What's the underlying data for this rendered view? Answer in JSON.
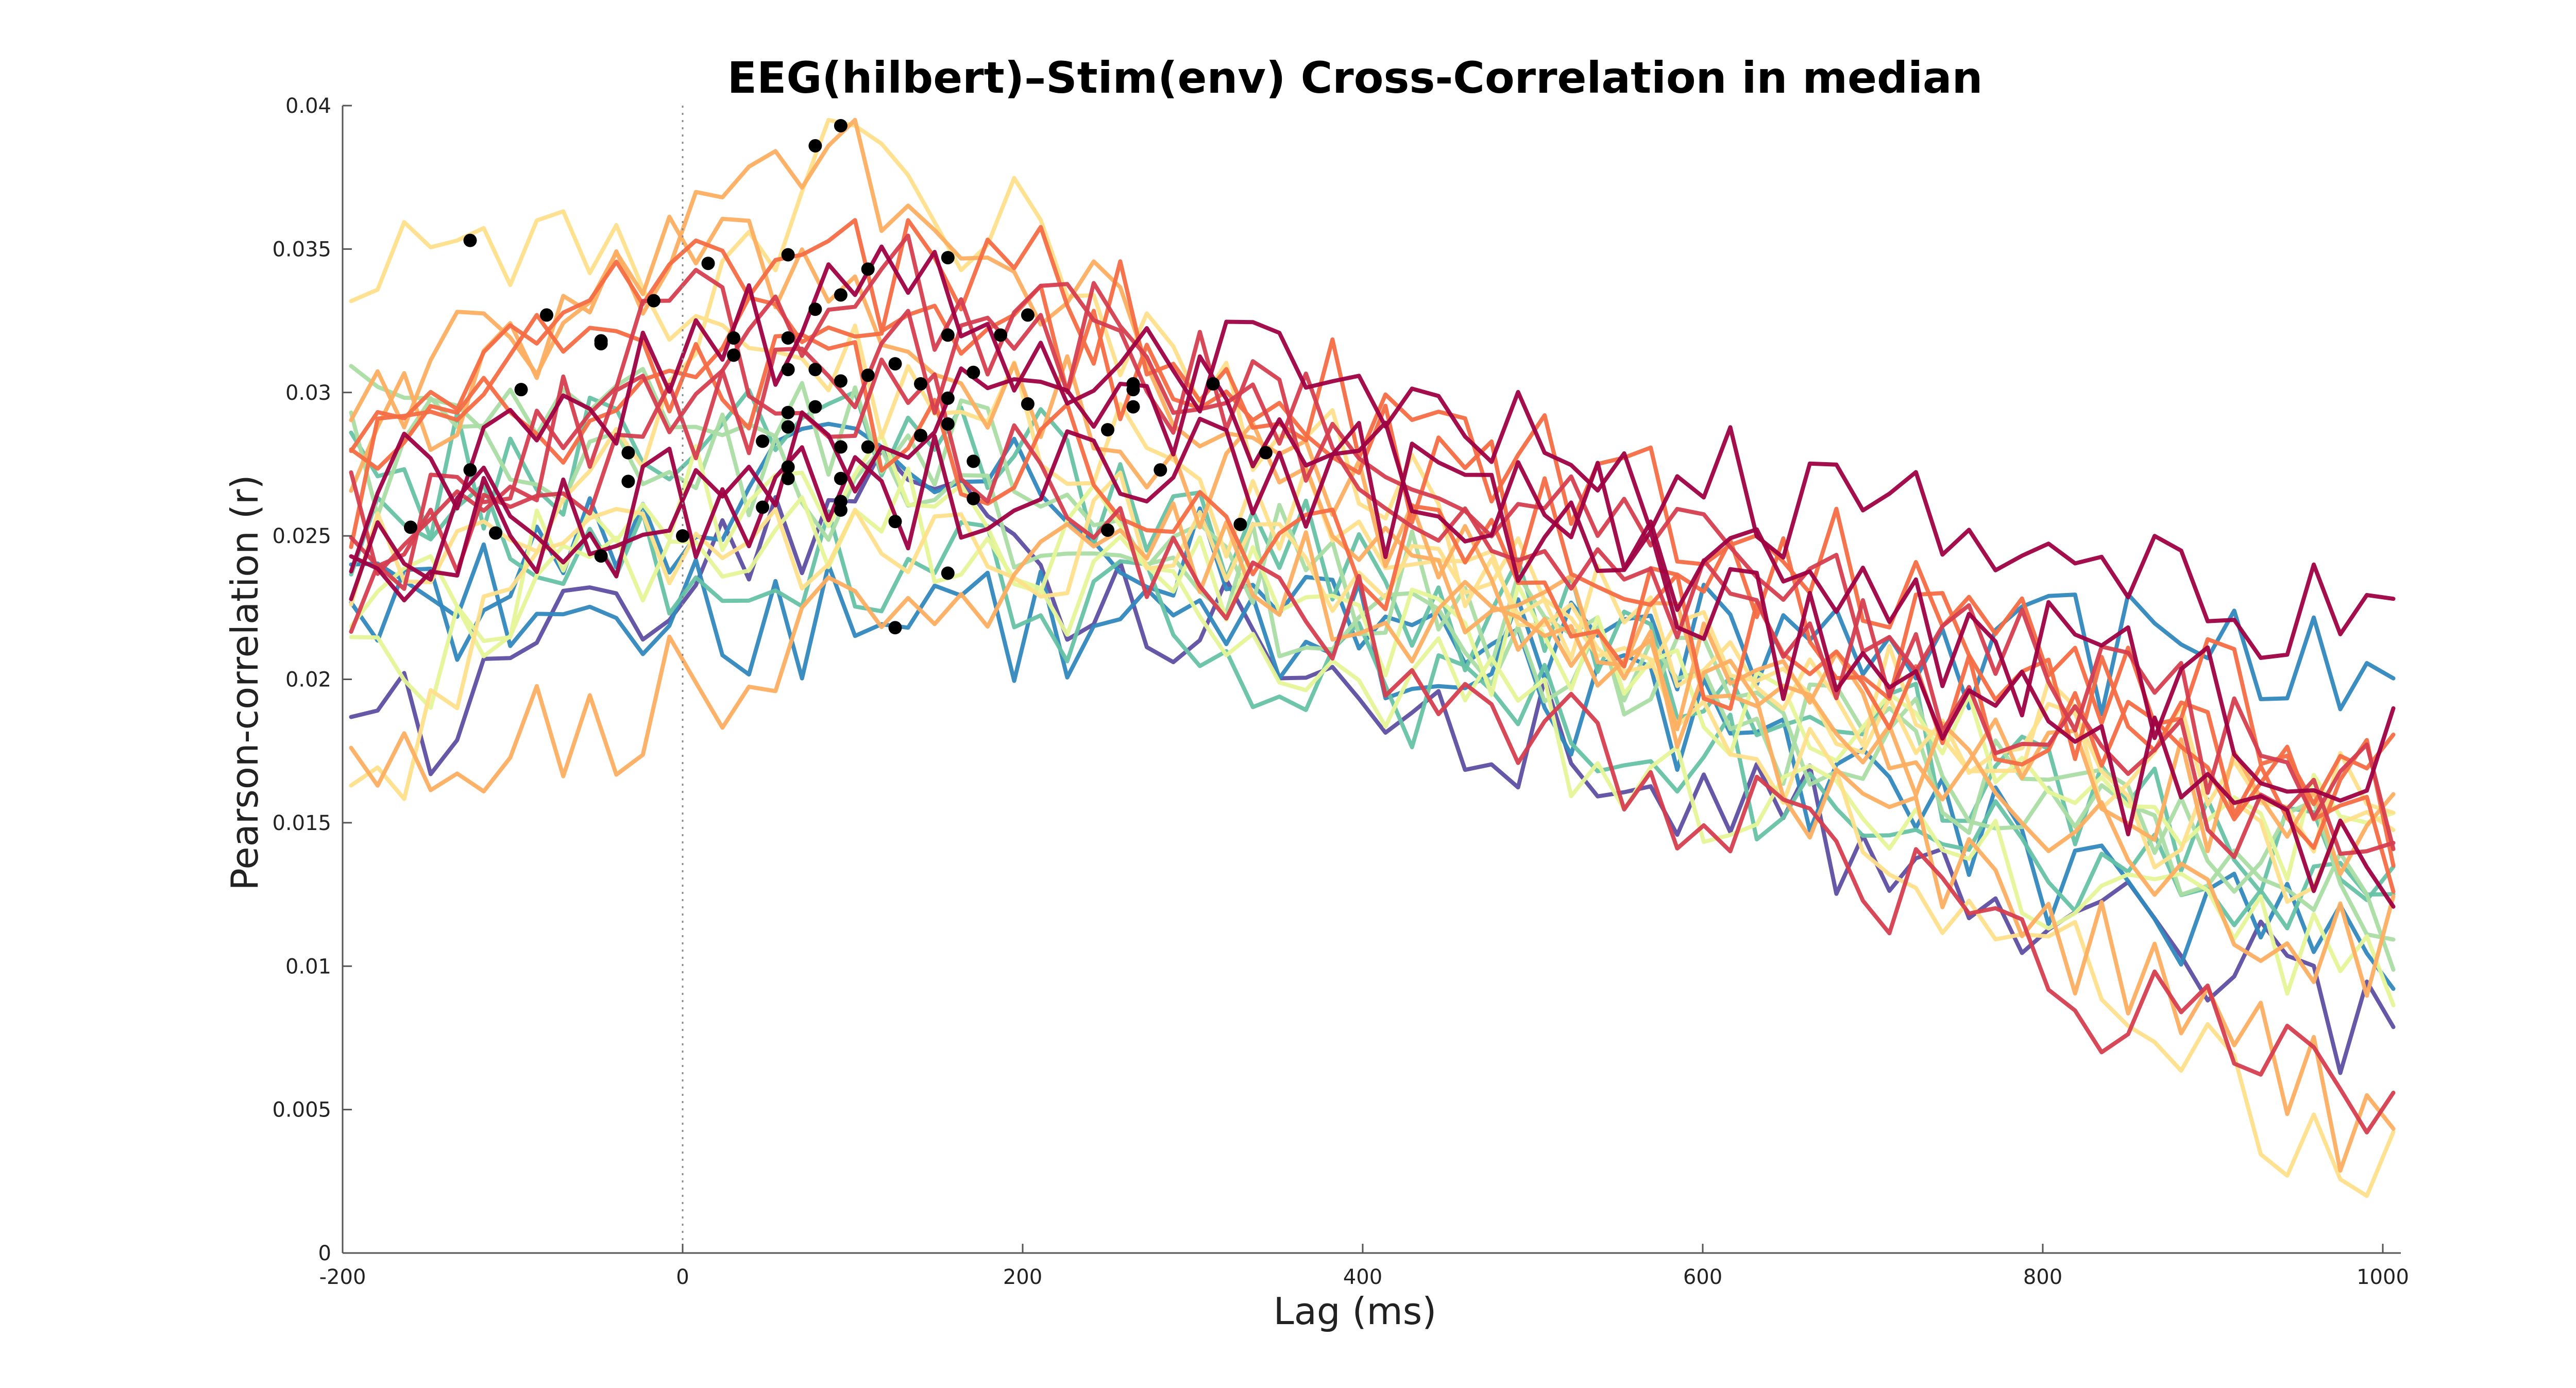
{
  "chart_data": {
    "type": "line",
    "title": "EEG(hilbert)–Stim(env) Cross-Correlation in median",
    "xlabel": "Lag (ms)",
    "ylabel": "Pearson-correlation (r)",
    "xlim": [
      -200,
      1000
    ],
    "ylim": [
      0,
      0.04
    ],
    "x_ticks": [
      -200,
      0,
      200,
      400,
      600,
      800,
      1000
    ],
    "x_tick_labels": [
      "-200",
      "0",
      "200",
      "400",
      "600",
      "800",
      "1000"
    ],
    "y_ticks": [
      0,
      0.005,
      0.01,
      0.015,
      0.02,
      0.025,
      0.03,
      0.035,
      0.04
    ],
    "y_tick_labels": [
      "0",
      "0.005",
      "0.01",
      "0.015",
      "0.02",
      "0.025",
      "0.03",
      "0.035",
      "0.04"
    ],
    "reference_line_x": 0,
    "x_start": -195,
    "x_step": 15.6,
    "n_points": 78,
    "grid": false,
    "legend": "none",
    "palette": [
      "#5e4fa2",
      "#3288bd",
      "#66c2a5",
      "#abdda4",
      "#e6f598",
      "#fee08b",
      "#fdae61",
      "#f46d43",
      "#d53e4f",
      "#9e0142"
    ],
    "series": [
      {
        "color": "#5e4fa2",
        "start": 0.0175,
        "peak_lag": 95,
        "peak": 0.0262,
        "end": 0.008
      },
      {
        "color": "#3288bd",
        "start": 0.021,
        "peak_lag": 110,
        "peak": 0.0281,
        "end": 0.0095
      },
      {
        "color": "#3288bd",
        "start": 0.023,
        "peak_lag": 125,
        "peak": 0.0218,
        "end": 0.0205
      },
      {
        "color": "#66c2a5",
        "start": 0.0255,
        "peak_lag": 155,
        "peak": 0.0237,
        "end": 0.011
      },
      {
        "color": "#66c2a5",
        "start": 0.0265,
        "peak_lag": 80,
        "peak": 0.0296,
        "end": 0.0125
      },
      {
        "color": "#abdda4",
        "start": 0.028,
        "peak_lag": 95,
        "peak": 0.027,
        "end": 0.013
      },
      {
        "color": "#abdda4",
        "start": 0.029,
        "peak_lag": 140,
        "peak": 0.0285,
        "end": 0.012
      },
      {
        "color": "#e6f598",
        "start": 0.02,
        "peak_lag": 95,
        "peak": 0.0259,
        "end": 0.009
      },
      {
        "color": "#e6f598",
        "start": 0.0215,
        "peak_lag": 65,
        "peak": 0.0272,
        "end": 0.014
      },
      {
        "color": "#fee08b",
        "start": 0.015,
        "peak_lag": 95,
        "peak": 0.0393,
        "end": 0.0025
      },
      {
        "color": "#fee08b",
        "start": 0.033,
        "peak_lag": -125,
        "peak": 0.0353,
        "end": 0.013
      },
      {
        "color": "#fee08b",
        "start": 0.024,
        "peak_lag": 330,
        "peak": 0.0254,
        "end": 0.015
      },
      {
        "color": "#fdae61",
        "start": 0.03,
        "peak_lag": 15,
        "peak": 0.0345,
        "end": 0.0105
      },
      {
        "color": "#fdae61",
        "start": 0.028,
        "peak_lag": 80,
        "peak": 0.0386,
        "end": 0.004
      },
      {
        "color": "#fdae61",
        "start": 0.0155,
        "peak_lag": 250,
        "peak": 0.0252,
        "end": 0.014
      },
      {
        "color": "#f46d43",
        "start": 0.029,
        "peak_lag": 65,
        "peak": 0.0348,
        "end": 0.0155
      },
      {
        "color": "#f46d43",
        "start": 0.027,
        "peak_lag": 155,
        "peak": 0.0347,
        "end": 0.017
      },
      {
        "color": "#f46d43",
        "start": 0.026,
        "peak_lag": -80,
        "peak": 0.0327,
        "end": 0.0145
      },
      {
        "color": "#d53e4f",
        "start": 0.025,
        "peak_lag": 110,
        "peak": 0.0343,
        "end": 0.016
      },
      {
        "color": "#d53e4f",
        "start": 0.024,
        "peak_lag": 205,
        "peak": 0.0327,
        "end": 0.0135
      },
      {
        "color": "#d53e4f",
        "start": 0.023,
        "peak_lag": -15,
        "peak": 0.0332,
        "end": 0.0045
      },
      {
        "color": "#9e0142",
        "start": 0.026,
        "peak_lag": 95,
        "peak": 0.0334,
        "end": 0.0215
      },
      {
        "color": "#9e0142",
        "start": 0.025,
        "peak_lag": 345,
        "peak": 0.0279,
        "end": 0.0135
      },
      {
        "color": "#9e0142",
        "start": 0.0245,
        "peak_lag": 265,
        "peak": 0.0303,
        "end": 0.017
      }
    ],
    "peak_markers": [
      {
        "x": -160,
        "y": 0.0253
      },
      {
        "x": -125,
        "y": 0.0353
      },
      {
        "x": -125,
        "y": 0.0273
      },
      {
        "x": -110,
        "y": 0.0251
      },
      {
        "x": -95,
        "y": 0.0301
      },
      {
        "x": -80,
        "y": 0.0327
      },
      {
        "x": -48,
        "y": 0.0318
      },
      {
        "x": -48,
        "y": 0.0317
      },
      {
        "x": -48,
        "y": 0.0243
      },
      {
        "x": -32,
        "y": 0.0279
      },
      {
        "x": -32,
        "y": 0.0269
      },
      {
        "x": -17,
        "y": 0.0332
      },
      {
        "x": 0,
        "y": 0.025
      },
      {
        "x": 15,
        "y": 0.0345
      },
      {
        "x": 30,
        "y": 0.0319
      },
      {
        "x": 30,
        "y": 0.0313
      },
      {
        "x": 47,
        "y": 0.0283
      },
      {
        "x": 47,
        "y": 0.026
      },
      {
        "x": 62,
        "y": 0.0348
      },
      {
        "x": 62,
        "y": 0.0319
      },
      {
        "x": 62,
        "y": 0.0308
      },
      {
        "x": 62,
        "y": 0.0293
      },
      {
        "x": 62,
        "y": 0.0288
      },
      {
        "x": 62,
        "y": 0.0274
      },
      {
        "x": 62,
        "y": 0.027
      },
      {
        "x": 78,
        "y": 0.0386
      },
      {
        "x": 78,
        "y": 0.0329
      },
      {
        "x": 78,
        "y": 0.0308
      },
      {
        "x": 78,
        "y": 0.0295
      },
      {
        "x": 93,
        "y": 0.0393
      },
      {
        "x": 93,
        "y": 0.0334
      },
      {
        "x": 93,
        "y": 0.0304
      },
      {
        "x": 93,
        "y": 0.0281
      },
      {
        "x": 93,
        "y": 0.027
      },
      {
        "x": 93,
        "y": 0.0262
      },
      {
        "x": 93,
        "y": 0.0259
      },
      {
        "x": 109,
        "y": 0.0343
      },
      {
        "x": 109,
        "y": 0.0306
      },
      {
        "x": 109,
        "y": 0.0281
      },
      {
        "x": 125,
        "y": 0.031
      },
      {
        "x": 125,
        "y": 0.0255
      },
      {
        "x": 125,
        "y": 0.0218
      },
      {
        "x": 140,
        "y": 0.0303
      },
      {
        "x": 140,
        "y": 0.0285
      },
      {
        "x": 156,
        "y": 0.0347
      },
      {
        "x": 156,
        "y": 0.032
      },
      {
        "x": 156,
        "y": 0.0298
      },
      {
        "x": 156,
        "y": 0.0289
      },
      {
        "x": 156,
        "y": 0.0237
      },
      {
        "x": 171,
        "y": 0.0307
      },
      {
        "x": 171,
        "y": 0.0276
      },
      {
        "x": 171,
        "y": 0.0263
      },
      {
        "x": 187,
        "y": 0.032
      },
      {
        "x": 203,
        "y": 0.0327
      },
      {
        "x": 203,
        "y": 0.0296
      },
      {
        "x": 250,
        "y": 0.0287
      },
      {
        "x": 250,
        "y": 0.0252
      },
      {
        "x": 265,
        "y": 0.0303
      },
      {
        "x": 265,
        "y": 0.0301
      },
      {
        "x": 265,
        "y": 0.0295
      },
      {
        "x": 281,
        "y": 0.0273
      },
      {
        "x": 312,
        "y": 0.0303
      },
      {
        "x": 328,
        "y": 0.0254
      },
      {
        "x": 343,
        "y": 0.0279
      }
    ]
  }
}
